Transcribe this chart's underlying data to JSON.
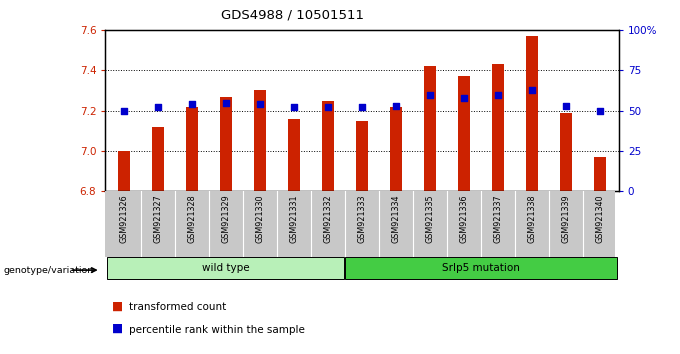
{
  "title": "GDS4988 / 10501511",
  "samples": [
    "GSM921326",
    "GSM921327",
    "GSM921328",
    "GSM921329",
    "GSM921330",
    "GSM921331",
    "GSM921332",
    "GSM921333",
    "GSM921334",
    "GSM921335",
    "GSM921336",
    "GSM921337",
    "GSM921338",
    "GSM921339",
    "GSM921340"
  ],
  "red_values": [
    7.0,
    7.12,
    7.22,
    7.27,
    7.3,
    7.16,
    7.25,
    7.15,
    7.22,
    7.42,
    7.37,
    7.43,
    7.57,
    7.19,
    6.97
  ],
  "blue_values": [
    50,
    52,
    54,
    55,
    54,
    52,
    52,
    52,
    53,
    60,
    58,
    60,
    63,
    53,
    50
  ],
  "ylim_left": [
    6.8,
    7.6
  ],
  "ylim_right": [
    0,
    100
  ],
  "yticks_left": [
    6.8,
    7.0,
    7.2,
    7.4,
    7.6
  ],
  "yticks_right": [
    0,
    25,
    50,
    75,
    100
  ],
  "ytick_labels_right": [
    "0",
    "25",
    "50",
    "75",
    "100%"
  ],
  "bar_color": "#cc2200",
  "dot_color": "#0000cc",
  "bar_bottom": 6.8,
  "wild_type_samples": 7,
  "wild_type_label": "wild type",
  "mutation_label": "Srlp5 mutation",
  "genotype_label": "genotype/variation",
  "legend_red": "transformed count",
  "legend_blue": "percentile rank within the sample",
  "tick_label_color_left": "#cc2200",
  "tick_label_color_right": "#0000cc",
  "group1_color": "#b8f0b8",
  "group2_color": "#44cc44",
  "sample_bg_color": "#c8c8c8"
}
